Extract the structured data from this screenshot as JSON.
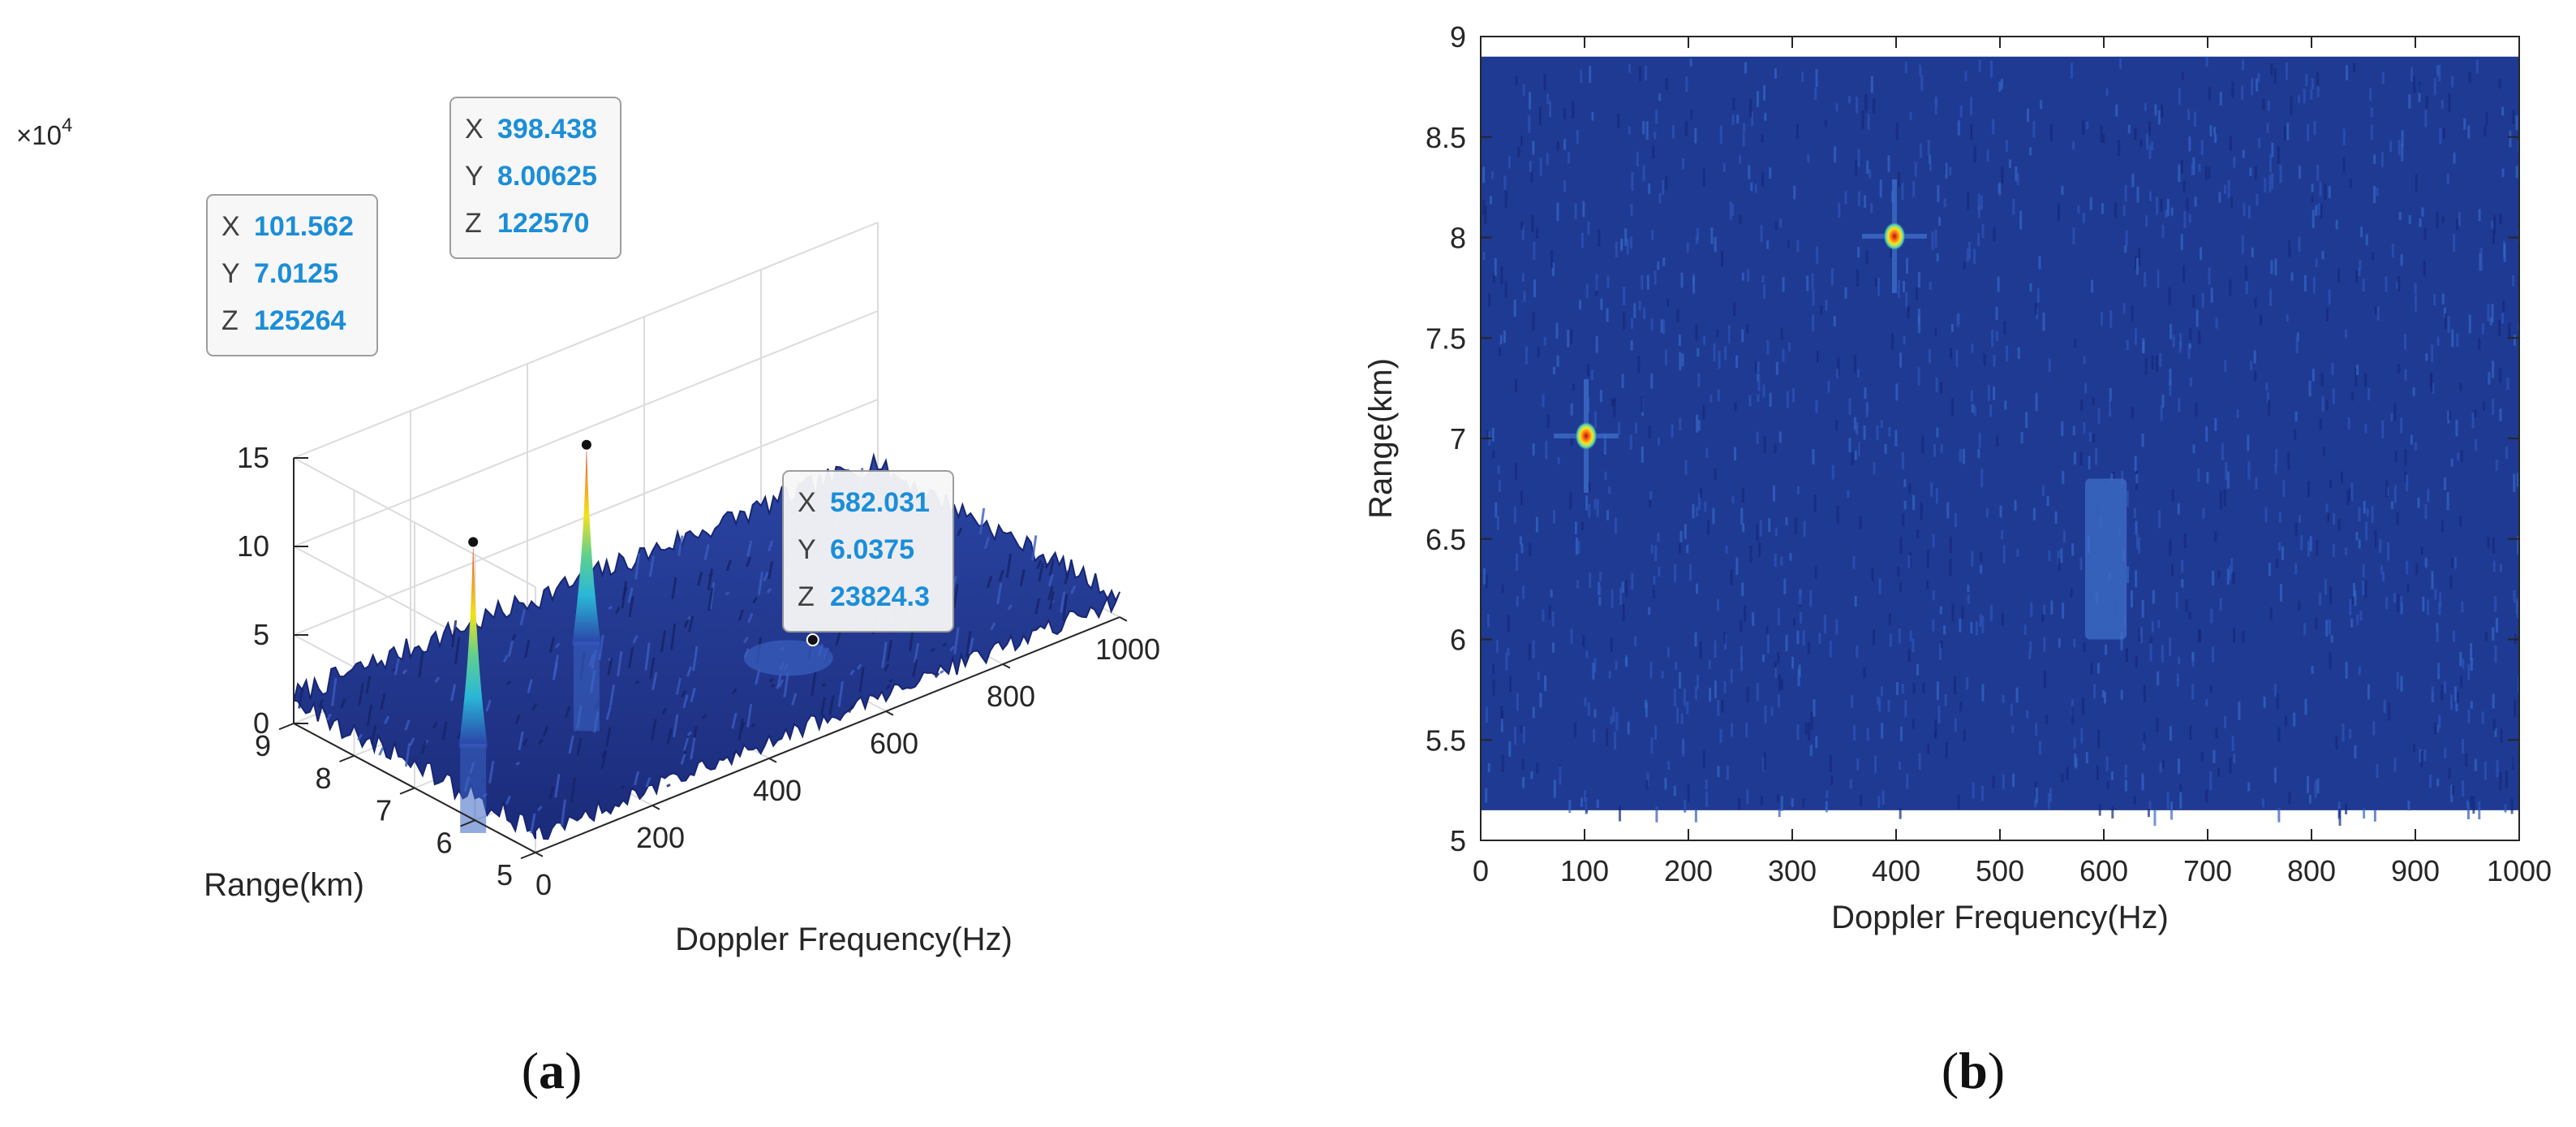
{
  "chart_data": [
    {
      "type": "surface",
      "panel_label": "a",
      "title": "",
      "xlabel": "Doppler Frequency(Hz)",
      "ylabel": "Range(km)",
      "zlabel": "",
      "z_multiplier": "10",
      "z_multiplier_exponent": "4",
      "xlim": [
        0,
        1000
      ],
      "ylim": [
        5,
        9
      ],
      "zlim": [
        0,
        150000
      ],
      "x_ticks": [
        "0",
        "200",
        "400",
        "600",
        "800",
        "1000"
      ],
      "y_ticks": [
        "5",
        "6",
        "7",
        "8",
        "9"
      ],
      "z_ticks": [
        "0",
        "5",
        "10",
        "15"
      ],
      "grid": true,
      "colormap": "parula",
      "noise_floor_z": 15000,
      "peaks": [
        {
          "x": 101.562,
          "y": 7.0125,
          "z": 125264
        },
        {
          "x": 398.438,
          "y": 8.00625,
          "z": 122570
        },
        {
          "x": 582.031,
          "y": 6.0375,
          "z": 23824.3
        }
      ],
      "datatips": [
        {
          "x_label": "X",
          "x_value": "101.562",
          "y_label": "Y",
          "y_value": "7.0125",
          "z_label": "Z",
          "z_value": "125264"
        },
        {
          "x_label": "X",
          "x_value": "398.438",
          "y_label": "Y",
          "y_value": "8.00625",
          "z_label": "Z",
          "z_value": "122570"
        },
        {
          "x_label": "X",
          "x_value": "582.031",
          "y_label": "Y",
          "y_value": "6.0375",
          "z_label": "Z",
          "z_value": "23824.3"
        }
      ]
    },
    {
      "type": "heatmap",
      "panel_label": "b",
      "title": "",
      "xlabel": "Doppler Frequency(Hz)",
      "ylabel": "Range(km)",
      "xlim": [
        0,
        1000
      ],
      "ylim": [
        5,
        9
      ],
      "data_extent_y": [
        5.15,
        8.9
      ],
      "x_ticks": [
        "0",
        "100",
        "200",
        "300",
        "400",
        "500",
        "600",
        "700",
        "800",
        "900",
        "1000"
      ],
      "y_ticks": [
        "5",
        "5.5",
        "6",
        "6.5",
        "7",
        "7.5",
        "8",
        "8.5",
        "9"
      ],
      "colormap": "parula",
      "background_color": "#1f3a93",
      "hotspots": [
        {
          "x": 101.562,
          "y": 7.0125,
          "strength": "peak"
        },
        {
          "x": 398.438,
          "y": 8.00625,
          "strength": "peak"
        }
      ],
      "weak_region": {
        "x_range": [
          582,
          622
        ],
        "y_range": [
          6.0,
          6.8
        ]
      }
    }
  ],
  "colors": {
    "axis": "#262626",
    "grid": "#dcdcdc",
    "datatip_value": "#1b8ed8",
    "datatip_label": "#404040",
    "surface_dark": "#1e2f86",
    "surface_mid": "#2a4aa8",
    "heatmap_bg": "#1f3a93"
  }
}
